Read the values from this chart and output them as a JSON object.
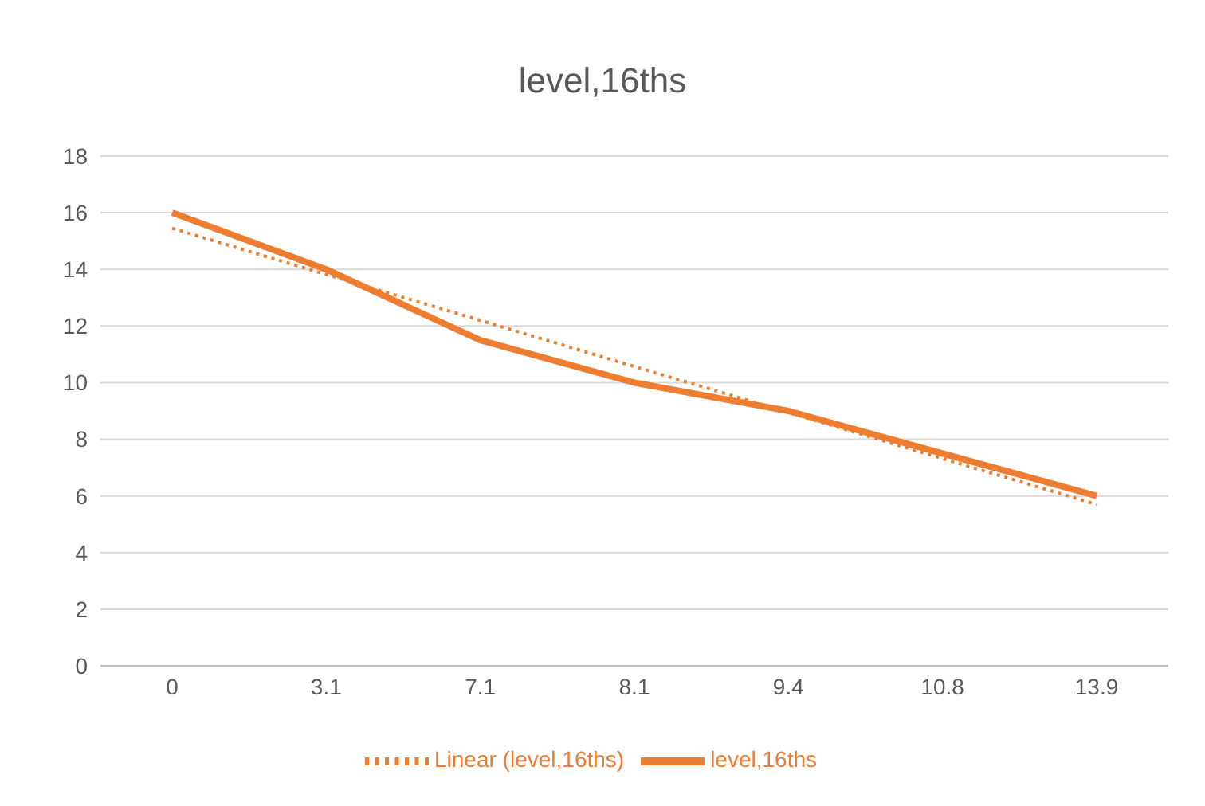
{
  "chart_data": {
    "type": "line",
    "title": "level,16ths",
    "categories": [
      "0",
      "3.1",
      "7.1",
      "8.1",
      "9.4",
      "10.8",
      "13.9"
    ],
    "series": [
      {
        "name": "level,16ths",
        "color": "#ed7d31",
        "values": [
          16,
          14,
          11.5,
          10,
          9,
          7.5,
          6
        ],
        "line_style": "solid"
      },
      {
        "name": "Linear (level,16ths)",
        "color": "#ed7d31",
        "type": "line",
        "values": [
          15.45,
          13.82,
          12.2,
          10.57,
          8.95,
          7.32,
          5.7
        ],
        "line_style": "dotted"
      }
    ],
    "ylim": [
      0,
      18
    ],
    "yticks": [
      0,
      2,
      4,
      6,
      8,
      10,
      12,
      14,
      16,
      18
    ],
    "grid": "y",
    "legend": "bottom",
    "marker": "none"
  }
}
